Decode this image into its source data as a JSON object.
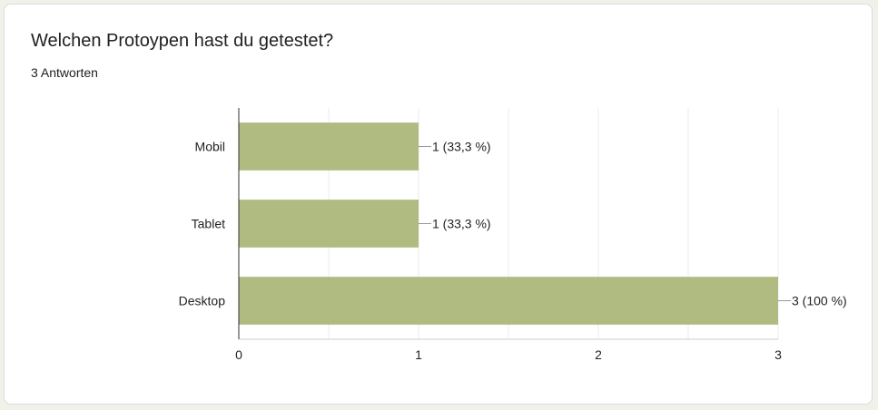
{
  "question": {
    "title": "Welchen Protoypen hast du getestet?",
    "responses": "3 Antworten"
  },
  "colors": {
    "bar": "#afbb80",
    "grid": "#ebebeb",
    "axis": "#333333"
  },
  "chart_data": {
    "type": "bar",
    "orientation": "horizontal",
    "categories": [
      "Mobil",
      "Tablet",
      "Desktop"
    ],
    "values": [
      1,
      1,
      3
    ],
    "data_labels": [
      "1 (33,3 %)",
      "1 (33,3 %)",
      "3 (100 %)"
    ],
    "xlim": [
      0,
      3
    ],
    "x_ticks": [
      "0",
      "1",
      "2",
      "3"
    ],
    "x_tick_values": [
      0,
      1,
      2,
      3
    ],
    "grid": true,
    "title": "",
    "xlabel": "",
    "ylabel": ""
  }
}
